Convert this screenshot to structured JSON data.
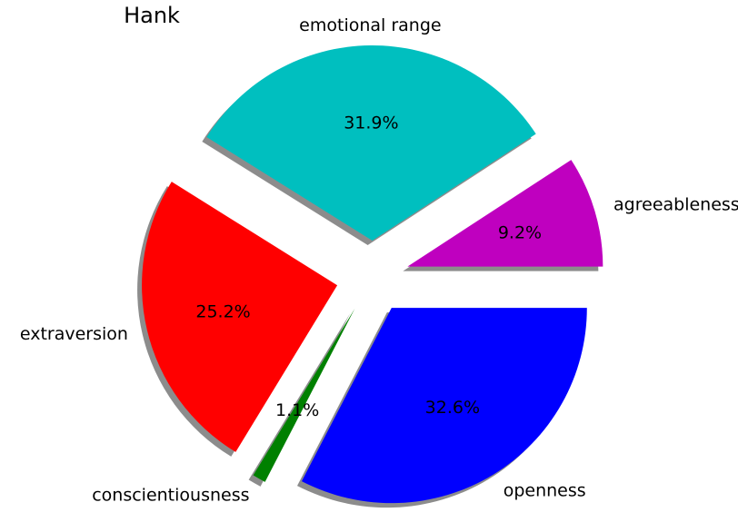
{
  "chart_data": {
    "type": "pie",
    "title": "Hank",
    "categories": [
      "agreeableness",
      "emotional range",
      "extraversion",
      "conscientiousness",
      "openness"
    ],
    "values": [
      9.2,
      31.9,
      25.2,
      1.1,
      32.6
    ],
    "value_labels": [
      "9.2%",
      "31.9%",
      "25.2%",
      "1.1%",
      "32.6%"
    ],
    "colors": [
      "#bf00bf",
      "#00bfbf",
      "#ff0000",
      "#008000",
      "#0000ff"
    ],
    "shadow": true
  }
}
